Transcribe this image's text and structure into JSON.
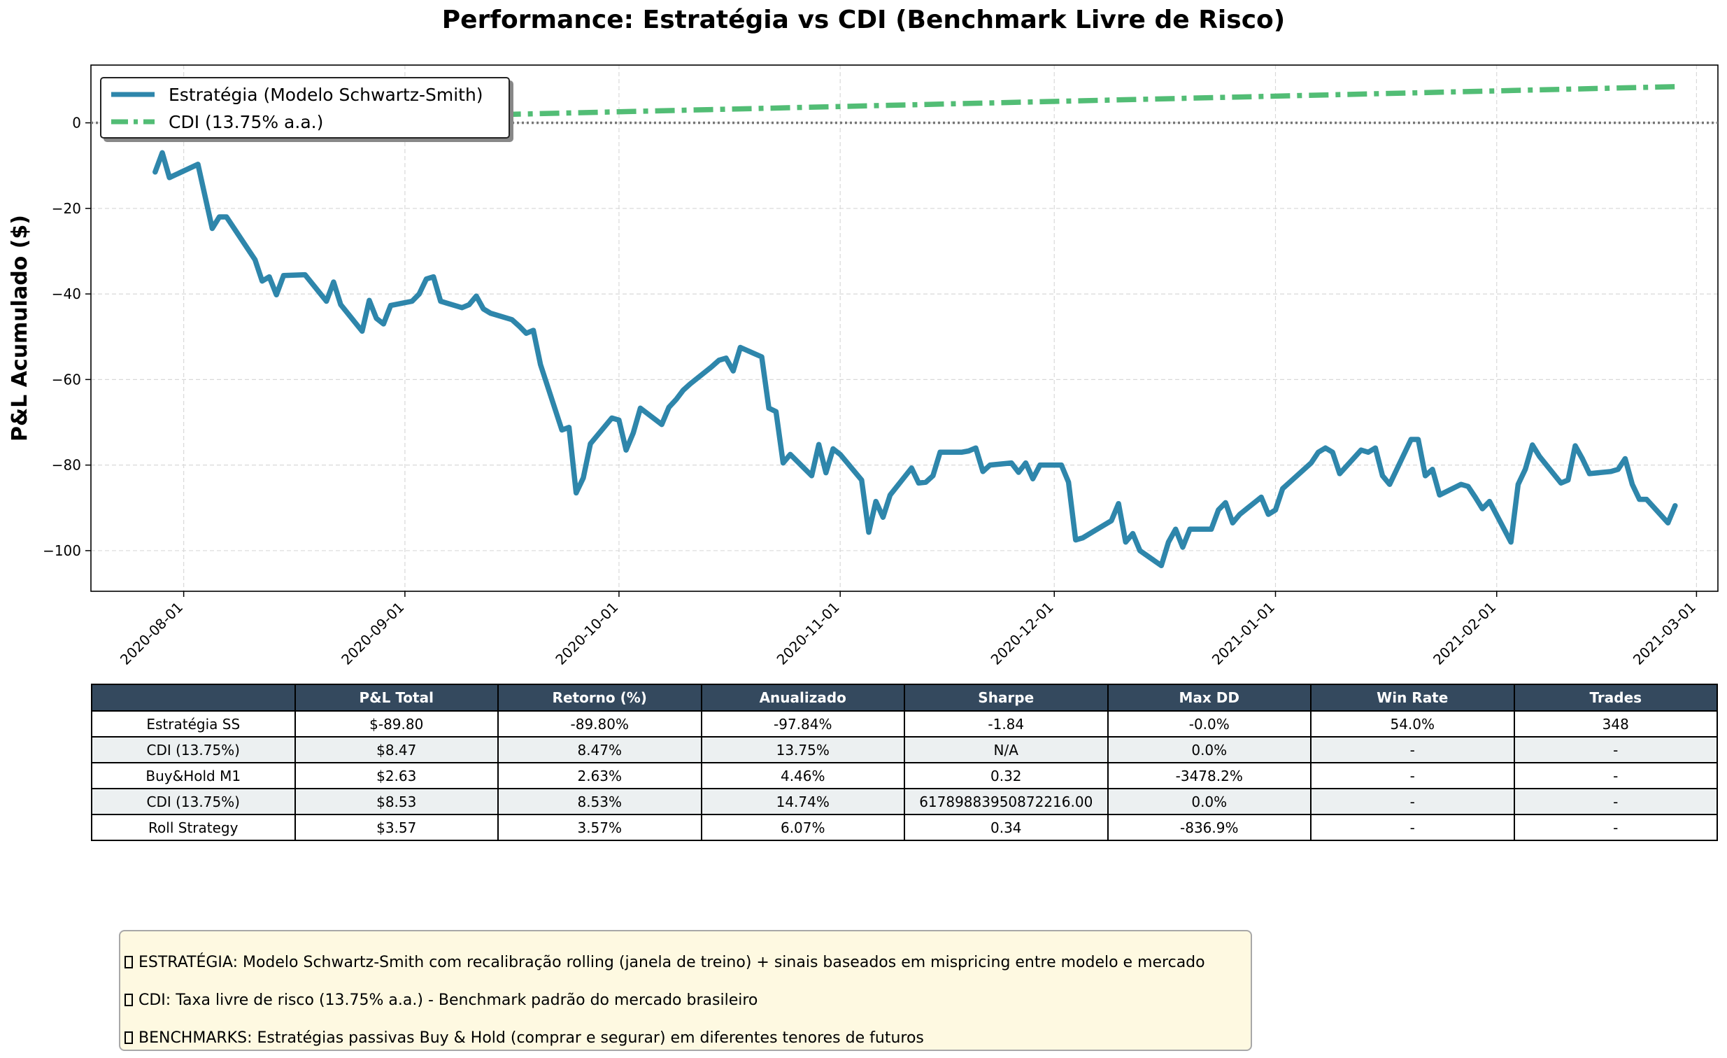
{
  "title": "Performance: Estratégia vs CDI (Benchmark Livre de Risco)",
  "chart_data": {
    "type": "line",
    "ylabel": "P&L Acumulado ($)",
    "xlabel": "",
    "xlim": [
      "2020-07-19",
      "2021-03-04"
    ],
    "ylim": [
      -109.5,
      13.5
    ],
    "grid": true,
    "legend_position": "top-left",
    "x_ticks": [
      "2020-08-01",
      "2020-09-01",
      "2020-10-01",
      "2020-11-01",
      "2020-12-01",
      "2021-01-01",
      "2021-02-01",
      "2021-03-01"
    ],
    "y_ticks": [
      0,
      -20,
      -40,
      -60,
      -80,
      -100
    ],
    "y_tick_labels": [
      "0",
      "−20",
      "−40",
      "−60",
      "−80",
      "−100"
    ],
    "reference_line": {
      "y": 0,
      "style": "dotted",
      "color": "#777777"
    },
    "series": [
      {
        "name": "Estratégia (Modelo Schwartz-Smith)",
        "color": "#2e86ab",
        "style": "solid",
        "points": [
          [
            "2020-07-28",
            -11.5
          ],
          [
            "2020-07-29",
            -7.0
          ],
          [
            "2020-07-30",
            -12.8
          ],
          [
            "2020-08-03",
            -9.7
          ],
          [
            "2020-08-05",
            -24.7
          ],
          [
            "2020-08-06",
            -22.0
          ],
          [
            "2020-08-07",
            -22.0
          ],
          [
            "2020-08-11",
            -32.0
          ],
          [
            "2020-08-12",
            -37.0
          ],
          [
            "2020-08-13",
            -36.0
          ],
          [
            "2020-08-14",
            -40.2
          ],
          [
            "2020-08-15",
            -35.7
          ],
          [
            "2020-08-18",
            -35.5
          ],
          [
            "2020-08-21",
            -41.7
          ],
          [
            "2020-08-22",
            -37.2
          ],
          [
            "2020-08-23",
            -42.5
          ],
          [
            "2020-08-26",
            -48.7
          ],
          [
            "2020-08-27",
            -41.5
          ],
          [
            "2020-08-28",
            -45.7
          ],
          [
            "2020-08-29",
            -47.0
          ],
          [
            "2020-08-30",
            -42.7
          ],
          [
            "2020-09-02",
            -41.7
          ],
          [
            "2020-09-03",
            -40.0
          ],
          [
            "2020-09-04",
            -36.5
          ],
          [
            "2020-09-05",
            -36.0
          ],
          [
            "2020-09-06",
            -41.7
          ],
          [
            "2020-09-09",
            -43.2
          ],
          [
            "2020-09-10",
            -42.5
          ],
          [
            "2020-09-11",
            -40.5
          ],
          [
            "2020-09-12",
            -43.5
          ],
          [
            "2020-09-13",
            -44.5
          ],
          [
            "2020-09-16",
            -46.0
          ],
          [
            "2020-09-17",
            -47.5
          ],
          [
            "2020-09-18",
            -49.2
          ],
          [
            "2020-09-19",
            -48.5
          ],
          [
            "2020-09-20",
            -56.5
          ],
          [
            "2020-09-23",
            -71.8
          ],
          [
            "2020-09-24",
            -71.2
          ],
          [
            "2020-09-25",
            -86.5
          ],
          [
            "2020-09-26",
            -83.0
          ],
          [
            "2020-09-27",
            -75.0
          ],
          [
            "2020-09-30",
            -69.0
          ],
          [
            "2020-10-01",
            -69.5
          ],
          [
            "2020-10-02",
            -76.5
          ],
          [
            "2020-10-03",
            -72.5
          ],
          [
            "2020-10-04",
            -66.7
          ],
          [
            "2020-10-07",
            -70.5
          ],
          [
            "2020-10-08",
            -66.5
          ],
          [
            "2020-10-09",
            -64.7
          ],
          [
            "2020-10-10",
            -62.5
          ],
          [
            "2020-10-11",
            -61.0
          ],
          [
            "2020-10-14",
            -57.0
          ],
          [
            "2020-10-15",
            -55.5
          ],
          [
            "2020-10-16",
            -55.0
          ],
          [
            "2020-10-17",
            -58.0
          ],
          [
            "2020-10-18",
            -52.5
          ],
          [
            "2020-10-21",
            -54.7
          ],
          [
            "2020-10-22",
            -66.7
          ],
          [
            "2020-10-23",
            -67.5
          ],
          [
            "2020-10-24",
            -79.5
          ],
          [
            "2020-10-25",
            -77.5
          ],
          [
            "2020-10-28",
            -82.5
          ],
          [
            "2020-10-29",
            -75.2
          ],
          [
            "2020-10-30",
            -81.8
          ],
          [
            "2020-10-31",
            -76.2
          ],
          [
            "2020-11-01",
            -77.5
          ],
          [
            "2020-11-04",
            -83.5
          ],
          [
            "2020-11-05",
            -95.7
          ],
          [
            "2020-11-06",
            -88.5
          ],
          [
            "2020-11-07",
            -92.2
          ],
          [
            "2020-11-08",
            -87.0
          ],
          [
            "2020-11-11",
            -80.7
          ],
          [
            "2020-11-12",
            -84.2
          ],
          [
            "2020-11-13",
            -84.0
          ],
          [
            "2020-11-14",
            -82.5
          ],
          [
            "2020-11-15",
            -77.0
          ],
          [
            "2020-11-18",
            -77.0
          ],
          [
            "2020-11-19",
            -76.7
          ],
          [
            "2020-11-20",
            -76.0
          ],
          [
            "2020-11-21",
            -81.5
          ],
          [
            "2020-11-22",
            -80.0
          ],
          [
            "2020-11-25",
            -79.5
          ],
          [
            "2020-11-26",
            -81.7
          ],
          [
            "2020-11-27",
            -79.5
          ],
          [
            "2020-11-28",
            -83.2
          ],
          [
            "2020-11-29",
            -80.0
          ],
          [
            "2020-12-02",
            -80.0
          ],
          [
            "2020-12-03",
            -84.0
          ],
          [
            "2020-12-04",
            -97.5
          ],
          [
            "2020-12-05",
            -97.0
          ],
          [
            "2020-12-09",
            -93.0
          ],
          [
            "2020-12-10",
            -89.0
          ],
          [
            "2020-12-11",
            -98.0
          ],
          [
            "2020-12-12",
            -96.0
          ],
          [
            "2020-12-13",
            -100.0
          ],
          [
            "2020-12-16",
            -103.5
          ],
          [
            "2020-12-17",
            -98.0
          ],
          [
            "2020-12-18",
            -95.0
          ],
          [
            "2020-12-19",
            -99.2
          ],
          [
            "2020-12-20",
            -95.0
          ],
          [
            "2020-12-23",
            -95.0
          ],
          [
            "2020-12-24",
            -90.5
          ],
          [
            "2020-12-25",
            -88.8
          ],
          [
            "2020-12-26",
            -93.5
          ],
          [
            "2020-12-27",
            -91.5
          ],
          [
            "2020-12-30",
            -87.5
          ],
          [
            "2020-12-31",
            -91.5
          ],
          [
            "2021-01-01",
            -90.5
          ],
          [
            "2021-01-02",
            -85.5
          ],
          [
            "2021-01-03",
            -84.0
          ],
          [
            "2021-01-06",
            -79.5
          ],
          [
            "2021-01-07",
            -77.0
          ],
          [
            "2021-01-08",
            -76.0
          ],
          [
            "2021-01-09",
            -77.0
          ],
          [
            "2021-01-10",
            -82.0
          ],
          [
            "2021-01-13",
            -76.5
          ],
          [
            "2021-01-14",
            -77.0
          ],
          [
            "2021-01-15",
            -76.0
          ],
          [
            "2021-01-16",
            -82.5
          ],
          [
            "2021-01-17",
            -84.5
          ],
          [
            "2021-01-20",
            -74.0
          ],
          [
            "2021-01-21",
            -74.0
          ],
          [
            "2021-01-22",
            -82.5
          ],
          [
            "2021-01-23",
            -81.0
          ],
          [
            "2021-01-24",
            -87.0
          ],
          [
            "2021-01-27",
            -84.5
          ],
          [
            "2021-01-28",
            -85.0
          ],
          [
            "2021-01-29",
            -87.5
          ],
          [
            "2021-01-30",
            -90.2
          ],
          [
            "2021-01-31",
            -88.5
          ],
          [
            "2021-02-03",
            -98.0
          ],
          [
            "2021-02-04",
            -84.5
          ],
          [
            "2021-02-05",
            -81.0
          ],
          [
            "2021-02-06",
            -75.3
          ],
          [
            "2021-02-07",
            -78.0
          ],
          [
            "2021-02-10",
            -84.2
          ],
          [
            "2021-02-11",
            -83.5
          ],
          [
            "2021-02-12",
            -75.5
          ],
          [
            "2021-02-13",
            -78.5
          ],
          [
            "2021-02-14",
            -82.0
          ],
          [
            "2021-02-17",
            -81.5
          ],
          [
            "2021-02-18",
            -81.0
          ],
          [
            "2021-02-19",
            -78.5
          ],
          [
            "2021-02-20",
            -84.5
          ],
          [
            "2021-02-21",
            -88.0
          ],
          [
            "2021-02-22",
            -88.0
          ],
          [
            "2021-02-25",
            -93.5
          ],
          [
            "2021-02-26",
            -89.5
          ]
        ]
      },
      {
        "name": "CDI (13.75% a.a.)",
        "color": "#52bd75",
        "style": "dashdot",
        "points": [
          [
            "2020-07-28",
            0.0
          ],
          [
            "2021-02-26",
            8.47
          ]
        ]
      }
    ]
  },
  "table": {
    "headers": [
      "",
      "P&L Total",
      "Retorno (%)",
      "Anualizado",
      "Sharpe",
      "Max DD",
      "Win Rate",
      "Trades"
    ],
    "rows": [
      [
        "Estratégia SS",
        "$-89.80",
        "-89.80%",
        "-97.84%",
        "-1.84",
        "-0.0%",
        "54.0%",
        "348"
      ],
      [
        "CDI (13.75%)",
        "$8.47",
        "8.47%",
        "13.75%",
        "N/A",
        "0.0%",
        "-",
        "-"
      ],
      [
        "Buy&Hold M1",
        "$2.63",
        "2.63%",
        "4.46%",
        "0.32",
        "-3478.2%",
        "-",
        "-"
      ],
      [
        "CDI (13.75%)",
        "$8.53",
        "8.53%",
        "14.74%",
        "61789883950872216.00",
        "0.0%",
        "-",
        "-"
      ],
      [
        "Roll Strategy",
        "$3.57",
        "3.57%",
        "6.07%",
        "0.34",
        "-836.9%",
        "-",
        "-"
      ]
    ]
  },
  "notes": [
    "ESTRATÉGIA: Modelo Schwartz-Smith com recalibração rolling (janela de treino) + sinais baseados em mispricing entre modelo e mercado",
    "CDI: Taxa livre de risco (13.75% a.a.) - Benchmark padrão do mercado brasileiro",
    "BENCHMARKS: Estratégias passivas Buy & Hold (comprar e segurar) em diferentes tenores de futuros"
  ]
}
